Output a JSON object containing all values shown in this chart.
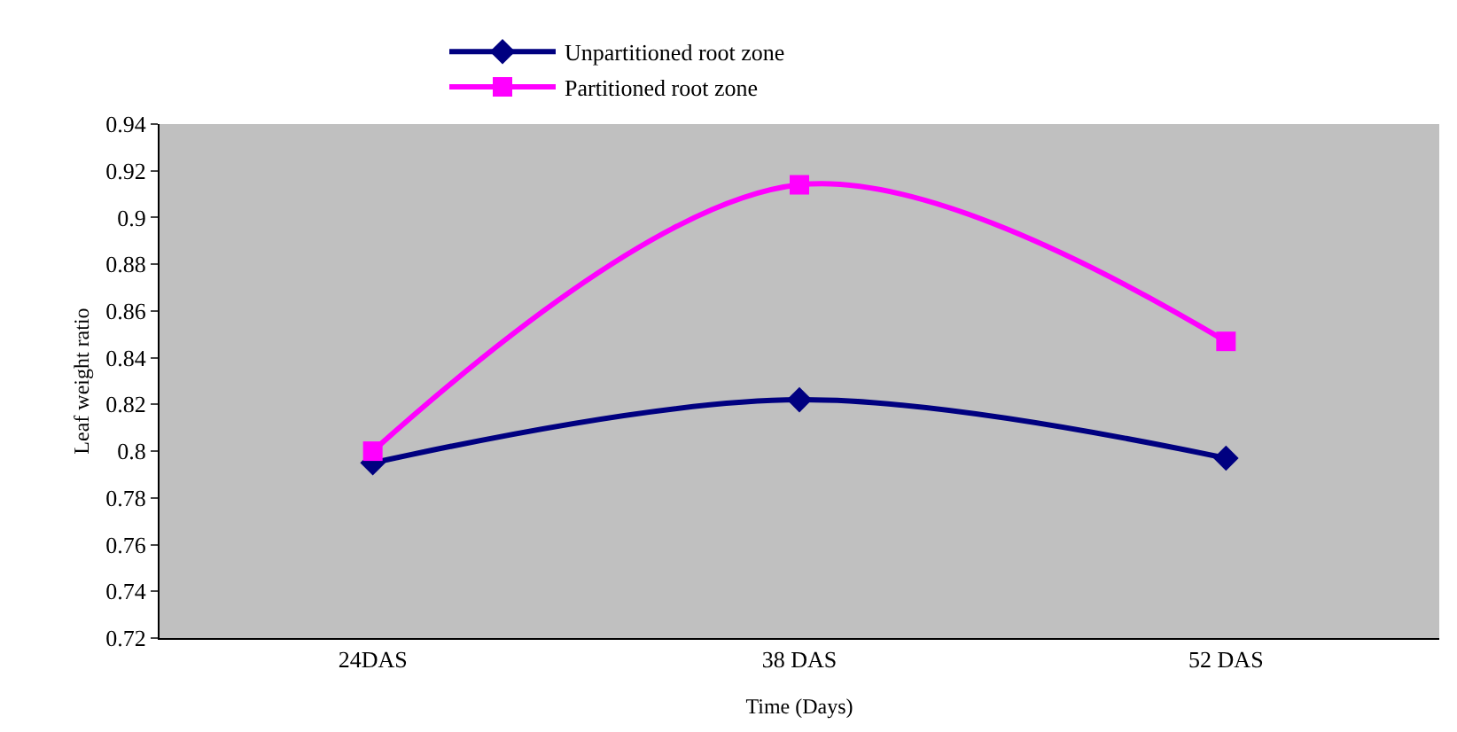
{
  "chart_data": {
    "type": "line",
    "xlabel": "Time (Days)",
    "ylabel": "Leaf weight ratio",
    "categories": [
      "24DAS",
      "38 DAS",
      "52 DAS"
    ],
    "series": [
      {
        "name": "Unpartitioned root zone",
        "color": "#000080",
        "marker": "diamond",
        "values": [
          0.795,
          0.822,
          0.797
        ]
      },
      {
        "name": "Partitioned root zone",
        "color": "#ff00ff",
        "marker": "square",
        "values": [
          0.8,
          0.914,
          0.847
        ]
      }
    ],
    "ylim": [
      0.72,
      0.94
    ],
    "yticks": [
      0.72,
      0.74,
      0.76,
      0.78,
      0.8,
      0.82,
      0.84,
      0.86,
      0.88,
      0.9,
      0.92,
      0.94
    ],
    "grid": false,
    "legend": "top",
    "line_style": "solid"
  }
}
